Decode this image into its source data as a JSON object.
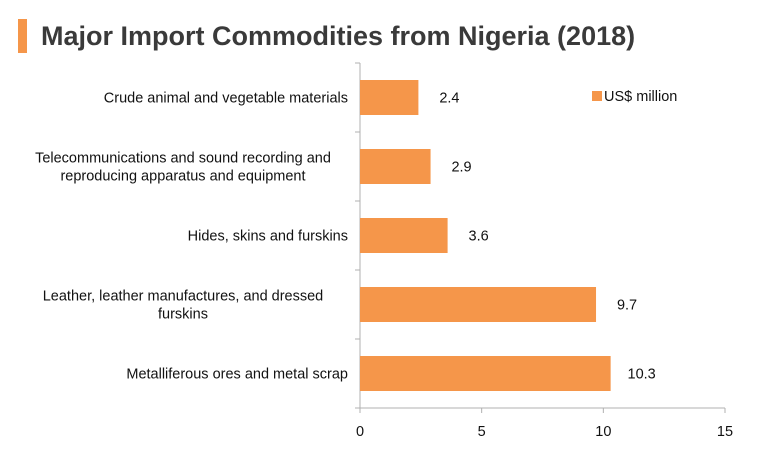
{
  "title": "Major Import Commodities from Nigeria (2018)",
  "colors": {
    "accent": "#F5964A",
    "bar": "#F5964A",
    "axis": "#b0b0b0",
    "text": "#111111"
  },
  "chart_data": {
    "type": "bar",
    "orientation": "horizontal",
    "title": "Major Import Commodities from Nigeria (2018)",
    "categories": [
      "Crude animal and vegetable materials",
      "Telecommunications and sound recording and reproducing apparatus and equipment",
      "Hides, skins and furskins",
      "Leather, leather manufactures, and dressed furskins",
      "Metalliferous ores and metal scrap"
    ],
    "category_lines": [
      [
        "Crude animal and vegetable materials"
      ],
      [
        "Telecommunications and sound recording and",
        "reproducing apparatus and equipment"
      ],
      [
        "Hides, skins and furskins"
      ],
      [
        "Leather, leather manufactures, and dressed",
        "furskins"
      ],
      [
        "Metalliferous ores and metal scrap"
      ]
    ],
    "series": [
      {
        "name": "US$ million",
        "values": [
          2.4,
          2.9,
          3.6,
          9.7,
          10.3
        ]
      }
    ],
    "value_labels": [
      "2.4",
      "2.9",
      "3.6",
      "9.7",
      "10.3"
    ],
    "xlim": [
      0,
      15
    ],
    "xticks": [
      0,
      5,
      10,
      15
    ],
    "xtick_labels": [
      "0",
      "5",
      "10",
      "15"
    ],
    "xlabel": "",
    "ylabel": "",
    "legend": {
      "position": "top-right",
      "label": "US$ million"
    },
    "grid": false
  }
}
